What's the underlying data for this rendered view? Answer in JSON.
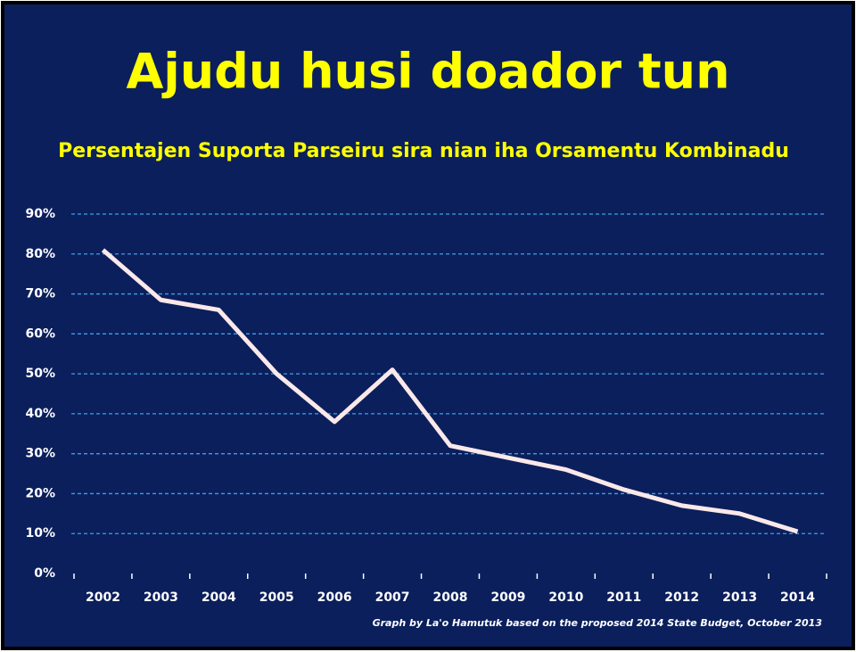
{
  "chart_data": {
    "type": "line",
    "title": "Ajudu husi doador tun",
    "subtitle": "Persentajen Suporta Parseiru sira nian iha Orsamentu Kombinadu",
    "note": "Graph by La'o Hamutuk based on the proposed 2014 State Budget, October 2013",
    "categories": [
      "2002",
      "2003",
      "2004",
      "2005",
      "2006",
      "2007",
      "2008",
      "2009",
      "2010",
      "2011",
      "2012",
      "2013",
      "2014"
    ],
    "series": [
      {
        "name": "Persentajen",
        "color": "#fbe8e8",
        "values": [
          81,
          68.5,
          66,
          50,
          38,
          51,
          32,
          29,
          26,
          21,
          17,
          15,
          10.5
        ]
      }
    ],
    "ylim": [
      0,
      90
    ],
    "yticks": [
      {
        "value": 0,
        "label": "0%"
      },
      {
        "value": 10,
        "label": "10%"
      },
      {
        "value": 20,
        "label": "20%"
      },
      {
        "value": 30,
        "label": "30%"
      },
      {
        "value": 40,
        "label": "40%"
      },
      {
        "value": 50,
        "label": "50%"
      },
      {
        "value": 60,
        "label": "60%"
      },
      {
        "value": 70,
        "label": "70%"
      },
      {
        "value": 80,
        "label": "80%"
      },
      {
        "value": 90,
        "label": "90%"
      }
    ],
    "grid": true
  }
}
